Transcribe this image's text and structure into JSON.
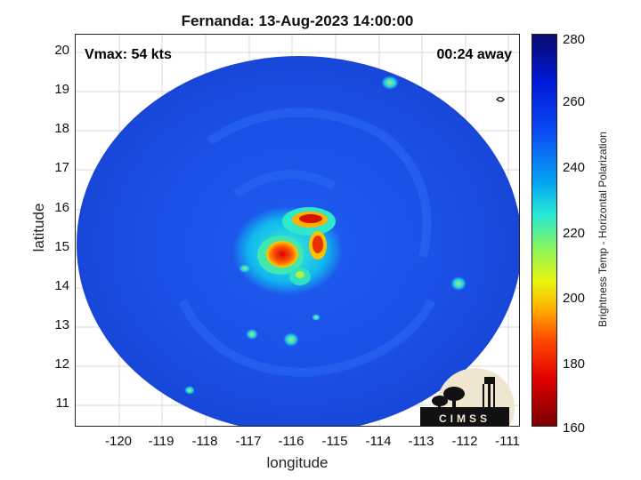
{
  "title": "Fernanda: 13-Aug-2023 14:00:00",
  "vmax_label": "Vmax: 54 kts",
  "time_away_label": "00:24 away",
  "x_axis": {
    "label": "longitude",
    "ticks": [
      "-120",
      "-119",
      "-118",
      "-117",
      "-116",
      "-115",
      "-114",
      "-113",
      "-112",
      "-111"
    ]
  },
  "y_axis": {
    "label": "latitude",
    "ticks": [
      "20",
      "19",
      "18",
      "17",
      "16",
      "15",
      "14",
      "13",
      "12",
      "11"
    ]
  },
  "colorbar": {
    "label": "Brightness Temp - Horizontal Polarization",
    "ticks": [
      "280",
      "260",
      "240",
      "220",
      "200",
      "180",
      "160"
    ],
    "min": 160,
    "max": 280
  },
  "logo_text": "CIMSS",
  "colors": {
    "background_blue": "#1a4fe8",
    "eye_red": "#e01000",
    "eye_orange": "#ff8a00",
    "cyan": "#20e0d0"
  }
}
